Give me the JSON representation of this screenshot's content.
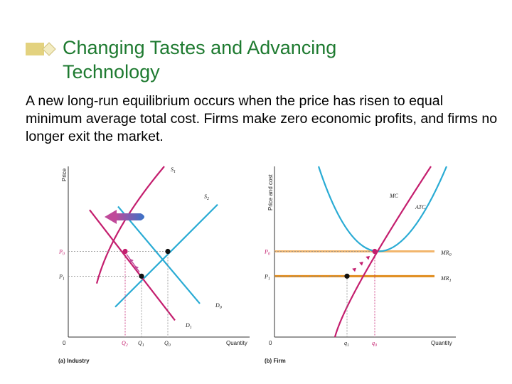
{
  "slide": {
    "title_line1": "Changing Tastes and Advancing",
    "title_line2": "Technology",
    "body": "A new long-run equilibrium occurs when the price has risen to equal minimum average total cost. Firms make zero economic profits, and firms no longer exit the market."
  },
  "colors": {
    "title": "#1e7a30",
    "supply_demand_pink": "#c41e6e",
    "curve_blue": "#29abd4",
    "mr0_line": "#f2b66d",
    "mr1_line": "#e08b1c",
    "arrow_blue": "#3a73c8",
    "arrow_pink": "#c04a9a"
  },
  "chart_data": [
    {
      "type": "line",
      "panel": "Industry",
      "caption": "(a) Industry",
      "xlabel": "Quantity",
      "ylabel": "Price",
      "grid": false,
      "x_ticks": [
        "Q2",
        "Q1",
        "Q0"
      ],
      "y_ticks": [
        "P0",
        "P1"
      ],
      "origin_label": "0",
      "curve_labels": [
        "S1",
        "S2",
        "D0",
        "D1"
      ],
      "series": [
        {
          "name": "S1",
          "x": [
            40,
            135
          ],
          "y": [
            80,
            255
          ]
        },
        {
          "name": "S2",
          "x": [
            66,
            210
          ],
          "y": [
            45,
            198
          ]
        },
        {
          "name": "D0",
          "x": [
            70,
            185
          ],
          "y": [
            195,
            50
          ]
        },
        {
          "name": "D1",
          "x": [
            30,
            150
          ],
          "y": [
            190,
            25
          ]
        }
      ],
      "equilibria": [
        {
          "x": 80,
          "y": 128,
          "quantity": "Q2",
          "price": "P0",
          "color": "pink"
        },
        {
          "x": 103,
          "y": 91,
          "quantity": "Q1",
          "price": "P1",
          "color": "black"
        },
        {
          "x": 140,
          "y": 128,
          "quantity": "Q0",
          "price": "P0",
          "color": "black"
        }
      ],
      "shift_arrow": "left"
    },
    {
      "type": "line",
      "panel": "Firm",
      "caption": "(b) Firm",
      "xlabel": "Quantity",
      "ylabel": "Price and cost",
      "grid": false,
      "x_ticks": [
        "q1",
        "q0"
      ],
      "y_ticks": [
        "P0",
        "P1"
      ],
      "origin_label": "0",
      "curve_labels": [
        "MC",
        "ATC",
        "MR0",
        "MR1"
      ],
      "series": [
        {
          "name": "MC",
          "x": [
            85,
            220
          ],
          "y": [
            0,
            255
          ]
        },
        {
          "name": "ATC",
          "x": [
            62,
            242
          ],
          "y": [
            255,
            255
          ],
          "min_x": 141,
          "min_y": 128
        },
        {
          "name": "MR0",
          "x": [
            0,
            255
          ],
          "y": [
            128,
            128
          ]
        },
        {
          "name": "MR1",
          "x": [
            0,
            255
          ],
          "y": [
            91,
            91
          ]
        }
      ],
      "points": [
        {
          "x": 141,
          "y": 128,
          "quantity": "q0",
          "price": "P0",
          "color": "pink"
        },
        {
          "x": 102,
          "y": 91,
          "quantity": "q1",
          "price": "P1",
          "color": "black"
        }
      ]
    }
  ]
}
